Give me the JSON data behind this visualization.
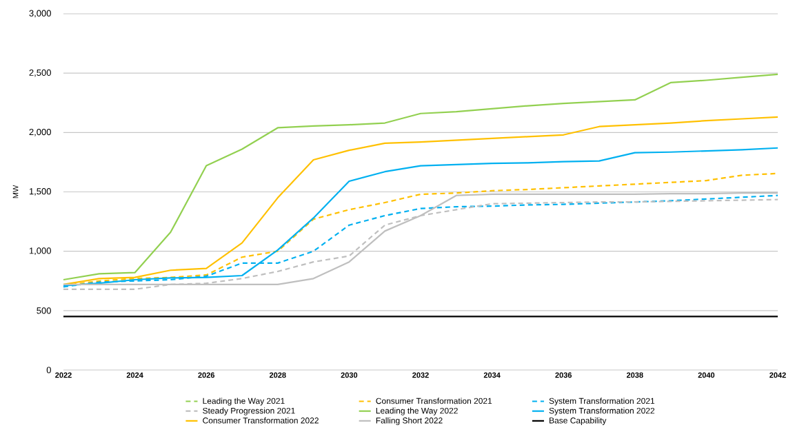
{
  "chart_data": {
    "type": "line",
    "ylabel": "MW",
    "x": [
      2022,
      2023,
      2024,
      2025,
      2026,
      2027,
      2028,
      2029,
      2030,
      2031,
      2032,
      2033,
      2034,
      2035,
      2036,
      2037,
      2038,
      2039,
      2040,
      2041,
      2042
    ],
    "xlim": [
      2022,
      2042
    ],
    "xticks": [
      2022,
      2024,
      2026,
      2028,
      2030,
      2032,
      2034,
      2036,
      2038,
      2040,
      2042
    ],
    "ylim": [
      0,
      3000
    ],
    "yticks": [
      0,
      {
        "value": 500,
        "label": "500"
      },
      {
        "value": 1000,
        "label": "1,000"
      },
      {
        "value": 1500,
        "label": "1,500"
      },
      {
        "value": 2000,
        "label": "2,000"
      },
      {
        "value": 2500,
        "label": "2,500"
      },
      {
        "value": 3000,
        "label": "3,000"
      }
    ],
    "grid": "y",
    "legend": "bottom",
    "marker": "none",
    "series": [
      {
        "name": "Leading the Way 2021",
        "color": "#92d050",
        "line_style": "dashed",
        "values": [
          null,
          null,
          null,
          null,
          null,
          null,
          null,
          null,
          null,
          null,
          null,
          null,
          null,
          null,
          null,
          null,
          null,
          null,
          null,
          null,
          null
        ]
      },
      {
        "name": "Consumer Transformation 2021",
        "color": "#ffc000",
        "line_style": "dashed",
        "values": [
          710,
          750,
          770,
          780,
          800,
          950,
          1000,
          1270,
          1350,
          1410,
          1480,
          1490,
          1510,
          1520,
          1535,
          1550,
          1565,
          1580,
          1595,
          1640,
          1655
        ]
      },
      {
        "name": "System Transformation 2021",
        "color": "#00b0f0",
        "line_style": "dashed",
        "values": [
          700,
          740,
          750,
          760,
          790,
          900,
          900,
          1000,
          1220,
          1300,
          1360,
          1375,
          1380,
          1390,
          1395,
          1405,
          1415,
          1425,
          1440,
          1455,
          1470
        ]
      },
      {
        "name": "Steady Progression 2021",
        "color": "#bfbfbf",
        "line_style": "dashed",
        "values": [
          680,
          680,
          680,
          720,
          730,
          770,
          830,
          910,
          960,
          1220,
          1300,
          1350,
          1400,
          1405,
          1410,
          1415,
          1415,
          1420,
          1425,
          1430,
          1435
        ]
      },
      {
        "name": "Leading the Way 2022",
        "color": "#92d050",
        "line_style": "solid",
        "values": [
          760,
          810,
          820,
          1160,
          1720,
          1860,
          2040,
          2055,
          2065,
          2080,
          2160,
          2175,
          2200,
          2225,
          2245,
          2260,
          2275,
          2420,
          2440,
          2465,
          2490
        ]
      },
      {
        "name": "System Transformation 2022",
        "color": "#00b0f0",
        "line_style": "solid",
        "values": [
          710,
          730,
          760,
          775,
          780,
          795,
          1010,
          1280,
          1590,
          1670,
          1720,
          1730,
          1740,
          1745,
          1755,
          1760,
          1830,
          1835,
          1845,
          1855,
          1870
        ]
      },
      {
        "name": "Consumer Transformation 2022",
        "color": "#ffc000",
        "line_style": "solid",
        "values": [
          720,
          770,
          780,
          840,
          855,
          1070,
          1450,
          1770,
          1850,
          1910,
          1920,
          1935,
          1950,
          1965,
          1980,
          2050,
          2065,
          2080,
          2100,
          2115,
          2130
        ]
      },
      {
        "name": "Falling Short 2022",
        "color": "#bfbfbf",
        "line_style": "solid",
        "values": [
          720,
          720,
          720,
          720,
          720,
          720,
          720,
          770,
          910,
          1170,
          1300,
          1470,
          1480,
          1480,
          1480,
          1480,
          1480,
          1485,
          1485,
          1490,
          1490
        ]
      },
      {
        "name": "Base Capability",
        "color": "#000000",
        "line_style": "solid",
        "values": [
          450,
          450,
          450,
          450,
          450,
          450,
          450,
          450,
          450,
          450,
          450,
          450,
          450,
          450,
          450,
          450,
          450,
          450,
          450,
          450,
          450
        ]
      }
    ]
  }
}
